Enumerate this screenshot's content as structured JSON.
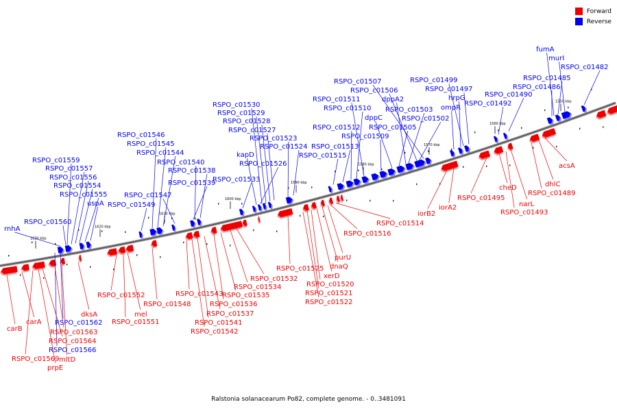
{
  "legend": {
    "forward": {
      "label": "Forward",
      "color": "#ee0000"
    },
    "reverse": {
      "label": "Reverse",
      "color": "#0000ee"
    }
  },
  "caption": "Ralstonia solanacearum Po82, complete genome. - 0..3481091",
  "ticks": [
    "1550 kbp",
    "1560 kbp",
    "1570 kbp",
    "1580 kbp",
    "1590 kbp",
    "1600 kbp",
    "1610 kbp",
    "1620 kbp",
    "1630 kbp"
  ],
  "reverse_labels": [
    "fumA",
    "murI",
    "RSPO_c01482",
    "RSPO_c01485",
    "RSPO_c01486",
    "RSPO_c01490",
    "RSPO_c01492",
    "RSPO_c01499",
    "RSPO_c01497",
    "hrpG",
    "ompR",
    "RSPO_c01507",
    "RSPO_c01506",
    "dppA2",
    "RSPO_c01503",
    "RSPO_c01502",
    "RSPO_c01505",
    "dppC",
    "RSPO_c01509",
    "RSPO_c01511",
    "RSPO_c01510",
    "RSPO_c01512",
    "RSPO_c01513",
    "RSPO_c01515",
    "RSPO_c01530",
    "RSPO_c01529",
    "RSPO_c01528",
    "RSPO_c01527",
    "RSPO_c01523",
    "RSPO_c01524",
    "kapD",
    "RSPO_c01526",
    "RSPO_c01533",
    "RSPO_c01546",
    "RSPO_c01545",
    "RSPO_c01544",
    "RSPO_c01540",
    "RSPO_c01538",
    "RSPO_c01539",
    "RSPO_c01547",
    "RSPO_c01549",
    "RSPO_c01559",
    "RSPO_c01557",
    "RSPO_c01556",
    "RSPO_c01554",
    "RSPO_c01555",
    "uspA",
    "RSPO_c01560",
    "rnhA",
    "RSPO_c01562",
    "RSPO_c01566"
  ],
  "forward_labels": [
    "acsA",
    "dhlC",
    "RSPO_c01489",
    "narL",
    "RSPO_c01493",
    "cheD",
    "RSPO_c01495",
    "iorA2",
    "iorB2",
    "RSPO_c01514",
    "RSPO_c01516",
    "purU",
    "dnaQ",
    "xerD",
    "RSPO_c01520",
    "RSPO_c01521",
    "RSPO_c01522",
    "RSPO_c01525",
    "RSPO_c01532",
    "RSPO_c01534",
    "RSPO_c01535",
    "RSPO_c01536",
    "RSPO_c01537",
    "RSPO_c01541",
    "RSPO_c01542",
    "RSPO_c01543",
    "RSPO_c01548",
    "RSPO_c01552",
    "mel",
    "RSPO_c01551",
    "dksA",
    "RSPO_c01563",
    "RSPO_c01564",
    "carA",
    "carB",
    "RSPO_c01569",
    "mltD",
    "prpE"
  ]
}
